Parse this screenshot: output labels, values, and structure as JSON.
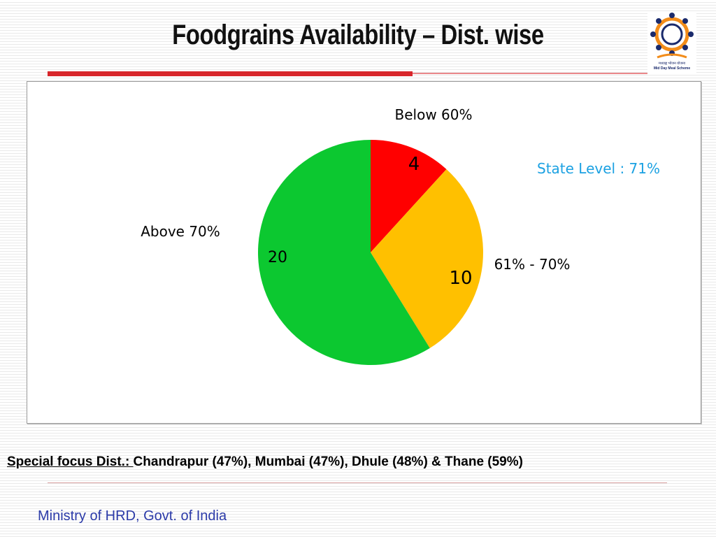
{
  "slide": {
    "title": "Foodgrains Availability – Dist. wise",
    "logo_text_line1": "मध्याह्न भोजन योजना",
    "logo_text_line2": "Mid Day Meal Scheme",
    "state_level": "State Level : 71%",
    "footer_label": "Special focus Dist.: ",
    "footer_text": "Chandrapur (47%), Mumbai (47%), Dhule (48%) & Thane  (59%)",
    "ministry": "Ministry of HRD, Govt. of India"
  },
  "colors": {
    "red": "#ff0000",
    "yellow": "#ffc000",
    "green": "#0cc830",
    "state_level": "#1ba1e2",
    "accent_rule": "#d8262b",
    "ministry": "#2b3aa8"
  },
  "chart_data": {
    "type": "pie",
    "title": "",
    "slices": [
      {
        "label": "Below 60%",
        "value": 4,
        "color": "#ff0000"
      },
      {
        "label": "61% - 70%",
        "value": 10,
        "color": "#ffc000"
      },
      {
        "label": "Above 70%",
        "value": 20,
        "color": "#0cc830"
      }
    ],
    "start_angle": "12 o'clock",
    "direction": "clockwise",
    "legend": "none (category labels placed beside slices)"
  }
}
